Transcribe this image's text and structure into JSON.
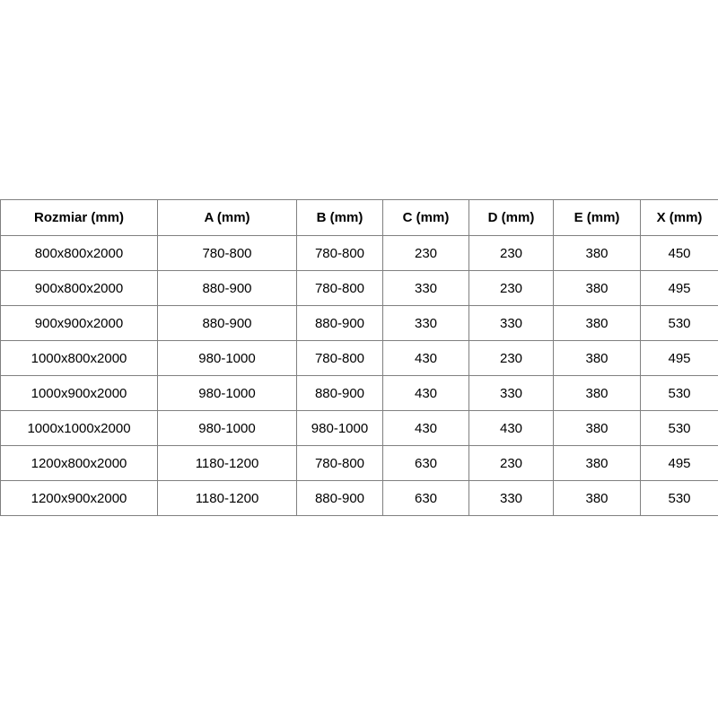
{
  "table": {
    "columns": [
      "Rozmiar (mm)",
      "A (mm)",
      "B (mm)",
      "C (mm)",
      "D (mm)",
      "E (mm)",
      "X (mm)"
    ],
    "rows": [
      [
        "800x800x2000",
        "780-800",
        "780-800",
        "230",
        "230",
        "380",
        "450"
      ],
      [
        "900x800x2000",
        "880-900",
        "780-800",
        "330",
        "230",
        "380",
        "495"
      ],
      [
        "900x900x2000",
        "880-900",
        "880-900",
        "330",
        "330",
        "380",
        "530"
      ],
      [
        "1000x800x2000",
        "980-1000",
        "780-800",
        "430",
        "230",
        "380",
        "495"
      ],
      [
        "1000x900x2000",
        "980-1000",
        "880-900",
        "430",
        "330",
        "380",
        "530"
      ],
      [
        "1000x1000x2000",
        "980-1000",
        "980-1000",
        "430",
        "430",
        "380",
        "530"
      ],
      [
        "1200x800x2000",
        "1180-1200",
        "780-800",
        "630",
        "230",
        "380",
        "495"
      ],
      [
        "1200x900x2000",
        "1180-1200",
        "880-900",
        "630",
        "330",
        "380",
        "530"
      ]
    ],
    "colors": {
      "border": "#808080",
      "text": "#000000",
      "background": "#ffffff"
    }
  }
}
